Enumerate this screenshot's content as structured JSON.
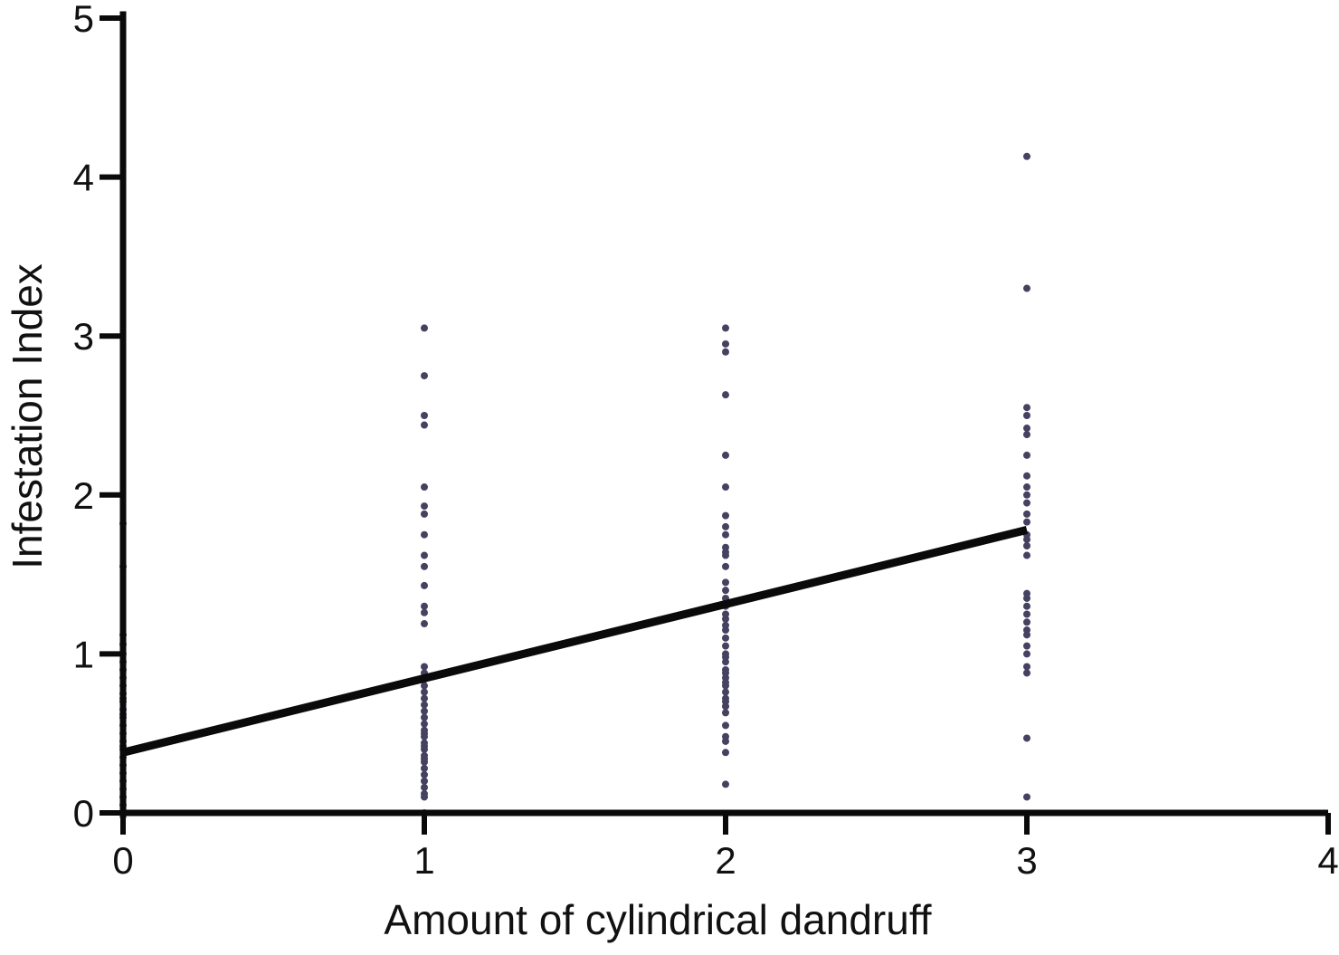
{
  "chart_data": {
    "type": "scatter",
    "title": "",
    "xlabel": "Amount of cylindrical dandruff",
    "ylabel": "Infestation Index",
    "xlim": [
      0,
      4
    ],
    "ylim": [
      0,
      5
    ],
    "xticks": [
      "0",
      "1",
      "2",
      "3",
      "4"
    ],
    "yticks": [
      "0",
      "1",
      "2",
      "3",
      "4",
      "5"
    ],
    "grid": false,
    "legend": "none",
    "point_color": "#454261",
    "line_color": "#0a0a0a",
    "series": [
      {
        "x": [
          0,
          0,
          0,
          0,
          0,
          0,
          0,
          0,
          0,
          0,
          0,
          0,
          0,
          0,
          0,
          0,
          0,
          0,
          0,
          0,
          0,
          0,
          0,
          0,
          0,
          0,
          0,
          0
        ],
        "y": [
          1.82,
          1.55,
          1.12,
          1.06,
          1.0,
          0.95,
          0.9,
          0.85,
          0.8,
          0.75,
          0.7,
          0.65,
          0.6,
          0.55,
          0.5,
          0.45,
          0.4,
          0.35,
          0.3,
          0.25,
          0.2,
          0.15,
          0.1,
          0.05,
          0.0,
          0.62,
          0.72,
          0.42
        ]
      },
      {
        "x": [
          1,
          1,
          1,
          1,
          1,
          1,
          1,
          1,
          1,
          1,
          1,
          1,
          1,
          1,
          1,
          1,
          1,
          1,
          1,
          1,
          1,
          1,
          1,
          1,
          1,
          1,
          1,
          1,
          1,
          1,
          1,
          1,
          1,
          1,
          1,
          1,
          1,
          1,
          1,
          1
        ],
        "y": [
          3.05,
          2.75,
          2.5,
          2.44,
          2.05,
          1.93,
          1.88,
          1.75,
          1.62,
          1.55,
          1.43,
          1.3,
          1.26,
          1.19,
          0.88,
          0.8,
          0.76,
          0.72,
          0.6,
          0.56,
          0.52,
          0.48,
          0.44,
          0.4,
          0.36,
          0.32,
          0.28,
          0.24,
          0.2,
          0.1,
          0.0,
          0.68,
          0.64,
          0.84,
          0.92,
          0.5,
          0.42,
          0.34,
          0.16,
          0.12
        ]
      },
      {
        "x": [
          2,
          2,
          2,
          2,
          2,
          2,
          2,
          2,
          2,
          2,
          2,
          2,
          2,
          2,
          2,
          2,
          2,
          2,
          2,
          2,
          2,
          2,
          2,
          2,
          2,
          2,
          2,
          2,
          2,
          2,
          2,
          2,
          2,
          2,
          2,
          2,
          2,
          2,
          2,
          2,
          2
        ],
        "y": [
          3.05,
          2.95,
          2.9,
          2.63,
          2.25,
          2.05,
          1.87,
          1.8,
          1.75,
          1.67,
          1.62,
          1.55,
          1.45,
          1.35,
          1.3,
          1.22,
          1.15,
          1.1,
          1.05,
          1.0,
          0.95,
          0.9,
          0.85,
          0.8,
          0.76,
          0.7,
          0.67,
          0.63,
          0.55,
          0.48,
          0.45,
          0.38,
          0.18,
          1.64,
          1.25,
          1.18,
          0.98,
          0.88,
          0.82,
          0.72,
          1.4
        ]
      },
      {
        "x": [
          3,
          3,
          3,
          3,
          3,
          3,
          3,
          3,
          3,
          3,
          3,
          3,
          3,
          3,
          3,
          3,
          3,
          3,
          3,
          3,
          3,
          3,
          3,
          3,
          3,
          3,
          3,
          3,
          3,
          3
        ],
        "y": [
          4.13,
          3.3,
          2.55,
          2.5,
          2.42,
          2.38,
          2.25,
          2.12,
          2.05,
          2.0,
          1.95,
          1.88,
          1.83,
          1.75,
          1.68,
          1.62,
          1.38,
          1.35,
          1.3,
          1.25,
          1.2,
          1.12,
          1.05,
          1.0,
          0.92,
          0.88,
          0.47,
          0.1,
          1.72,
          1.15
        ]
      }
    ],
    "regression_line": {
      "x": [
        0,
        3
      ],
      "y": [
        0.38,
        1.78
      ]
    }
  }
}
